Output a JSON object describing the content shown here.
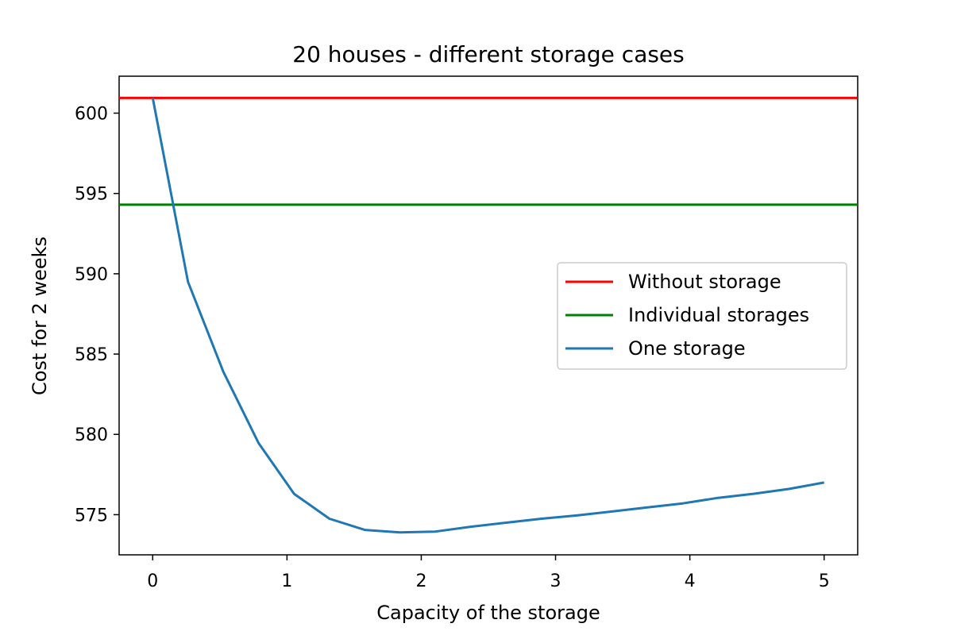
{
  "chart_data": {
    "type": "line",
    "title": "20 houses - different storage cases",
    "xlabel": "Capacity of the storage",
    "ylabel": "Cost for 2 weeks",
    "xlim": [
      -0.25,
      5.25
    ],
    "ylim": [
      572.5,
      602.3
    ],
    "xticks": [
      0,
      1,
      2,
      3,
      4,
      5
    ],
    "yticks": [
      575,
      580,
      585,
      590,
      595,
      600
    ],
    "grid": false,
    "legend_position": "center-right",
    "series": [
      {
        "name": "Without storage",
        "kind": "hline",
        "y": 600.95,
        "color": "#ff0000"
      },
      {
        "name": "Individual storages",
        "kind": "hline",
        "y": 594.3,
        "color": "#008000"
      },
      {
        "name": "One storage",
        "kind": "line",
        "color": "#1f77b4",
        "x": [
          0,
          0.263,
          0.526,
          0.789,
          1.053,
          1.316,
          1.579,
          1.842,
          2.105,
          2.368,
          2.632,
          2.895,
          3.158,
          3.421,
          3.684,
          3.947,
          4.211,
          4.474,
          4.737,
          5.0
        ],
        "y": [
          600.95,
          589.5,
          583.9,
          579.45,
          576.3,
          574.75,
          574.05,
          573.9,
          573.95,
          574.25,
          574.5,
          574.75,
          574.95,
          575.2,
          575.45,
          575.7,
          576.05,
          576.3,
          576.6,
          577.0
        ]
      }
    ]
  }
}
